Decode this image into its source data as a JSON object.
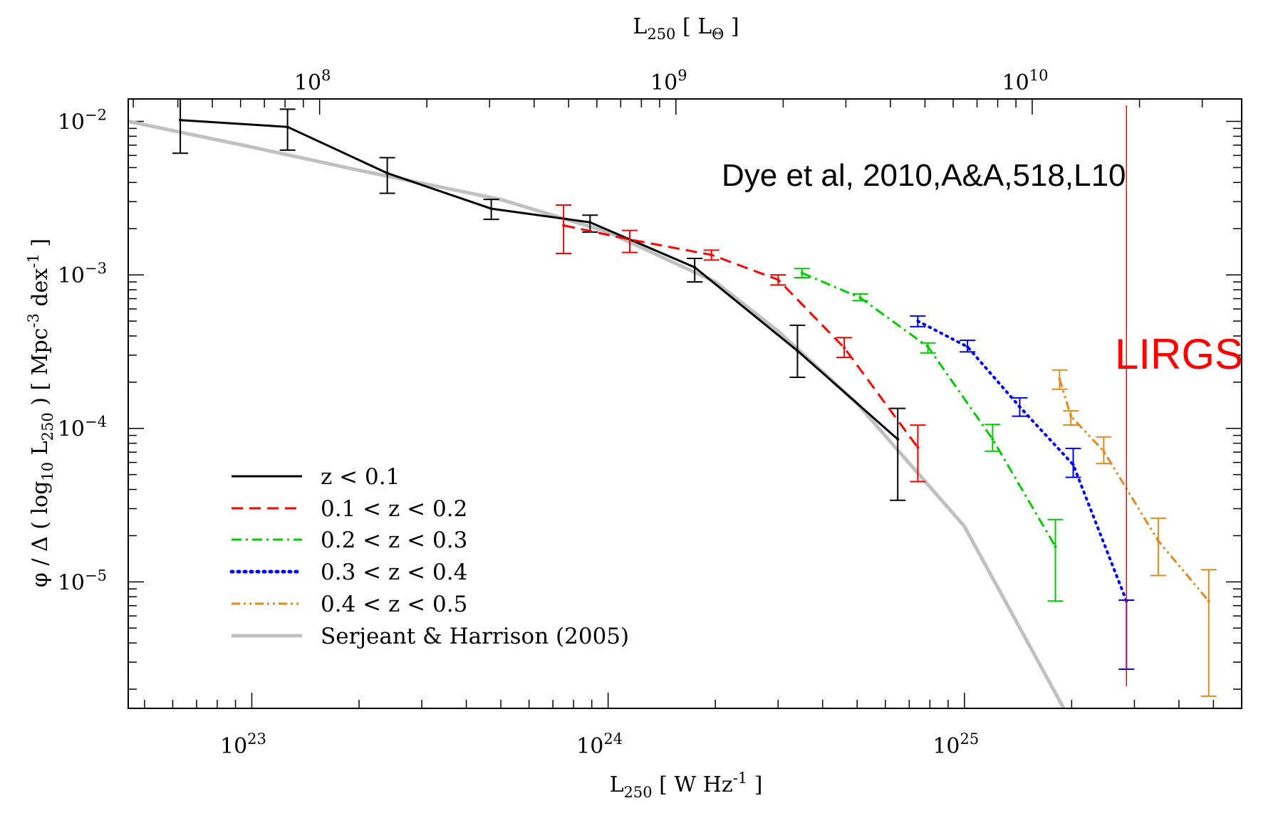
{
  "chart_data": {
    "type": "line",
    "xscale": "log",
    "yscale": "log",
    "xlim": [
      4.5e+22,
      6e+25
    ],
    "ylim": [
      1.5e-06,
      0.014
    ],
    "x_ticks": [
      1e+23,
      1e+24,
      1e+25
    ],
    "y_ticks": [
      1e-05,
      0.0001,
      0.001,
      0.01
    ],
    "top_ticks": [
      100000000.0,
      1000000000.0,
      10000000000.0
    ],
    "top_axis_ratio_W_per_Lsun": 1550000000000000.0,
    "grid": false,
    "series": [
      {
        "name": "z < 0.1",
        "color": "#000000",
        "dash": "solid",
        "x": [
          6.3e+22,
          1.26e+23,
          2.4e+23,
          4.7e+23,
          8.9e+23,
          1.75e+24,
          3.4e+24,
          6.5e+24
        ],
        "y": [
          0.0102,
          0.0092,
          0.0046,
          0.0027,
          0.0022,
          0.00112,
          0.00032,
          8.5e-05
        ],
        "err_lo": [
          0.0062,
          0.0065,
          0.0034,
          0.0023,
          0.0019,
          0.0009,
          0.000215,
          3.4e-05
        ],
        "err_hi": [
          0.0145,
          0.012,
          0.0058,
          0.0031,
          0.00245,
          0.00128,
          0.00047,
          0.000135
        ]
      },
      {
        "name": "0.1 < z < 0.2",
        "color": "#ff0000",
        "dash": "dashed",
        "x": [
          7.5e+23,
          1.15e+24,
          1.95e+24,
          3e+24,
          4.6e+24,
          7.4e+24
        ],
        "y": [
          0.0021,
          0.0017,
          0.00135,
          0.00093,
          0.000335,
          7.5e-05
        ],
        "err_lo": [
          0.00138,
          0.0014,
          0.00125,
          0.00086,
          0.00029,
          4.5e-05
        ],
        "err_hi": [
          0.00285,
          0.00195,
          0.00145,
          0.001,
          0.00039,
          0.000105
        ]
      },
      {
        "name": "0.2 < z < 0.3",
        "color": "#00cc00",
        "dash": "dashdot",
        "x": [
          3.5e+24,
          5.1e+24,
          7.9e+24,
          1.2e+25,
          1.8e+25
        ],
        "y": [
          0.00103,
          0.00071,
          0.00034,
          8.5e-05,
          1.7e-05
        ],
        "err_lo": [
          0.00096,
          0.00068,
          0.00031,
          7.1e-05,
          7.5e-06
        ],
        "err_hi": [
          0.0011,
          0.00075,
          0.00036,
          0.000106,
          2.55e-05
        ]
      },
      {
        "name": "0.3 < z < 0.4",
        "color": "#0000ff",
        "dash": "dotted",
        "x": [
          7.4e+24,
          1.02e+25,
          1.43e+25,
          2.02e+25,
          2.85e+25
        ],
        "y": [
          0.0005,
          0.00034,
          0.000138,
          5.8e-05,
          7.5e-06
        ],
        "err_lo": [
          0.00046,
          0.000315,
          0.00012,
          4.8e-05,
          2.7e-06
        ],
        "err_hi": [
          0.00054,
          0.000375,
          0.000158,
          7.4e-05,
          7.6e-06
        ]
      },
      {
        "name": "0.4 < z < 0.5",
        "color": "#e08a1e",
        "dash": "dashdotdot",
        "x": [
          1.85e+25,
          1.99e+25,
          2.46e+25,
          3.5e+25,
          4.85e+25
        ],
        "y": [
          0.00021,
          0.00012,
          7.1e-05,
          1.85e-05,
          7.5e-06
        ],
        "err_lo": [
          0.00018,
          0.000105,
          5.9e-05,
          1.1e-05,
          1.8e-06
        ],
        "err_hi": [
          0.00024,
          0.00013,
          8.8e-05,
          2.6e-05,
          1.2e-05
        ]
      },
      {
        "name": "Serjeant & Harrison (2005)",
        "color": "#c0c0c0",
        "dash": "solid-thick",
        "x": [
          4.5e+22,
          1e+23,
          2e+23,
          5e+23,
          1e+24,
          2e+24,
          3e+24,
          5e+24,
          1e+25,
          1.9e+25
        ],
        "y": [
          0.01,
          0.0068,
          0.0048,
          0.0031,
          0.0019,
          0.0009,
          0.00043,
          0.000145,
          2.3e-05,
          1.5e-06
        ]
      }
    ],
    "vline": {
      "x": 2.85e+25,
      "color": "#ff0000"
    }
  },
  "text": {
    "x_label": {
      "main": "L",
      "sub": "250",
      "rest1": " [ W Hz",
      "sup": "-1",
      "rest2": " ]"
    },
    "top_label": {
      "main": "L",
      "sub": "250",
      "rest1": " [ L",
      "subsym": "Θ",
      "rest2": " ]"
    },
    "y_label": {
      "p1": "φ / Δ ( log",
      "sub1": "10",
      "p2": " L",
      "sub2": "250",
      "p3": " )   [ Mpc",
      "sup1": "-3",
      "p4": " dex",
      "sup2": "-1",
      "p5": " ]"
    },
    "citation": "Dye et al, 2010,A&A,518,L10",
    "lirgs": "LIRGS"
  }
}
